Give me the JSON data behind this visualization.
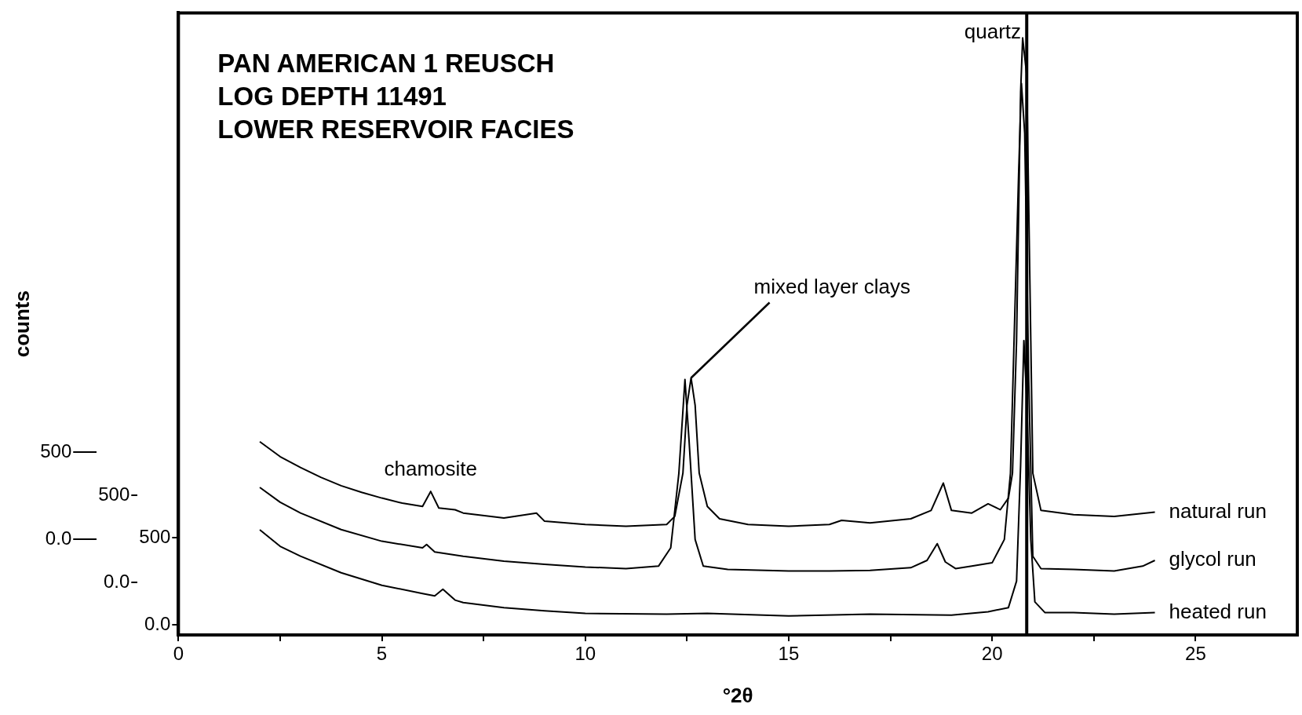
{
  "chart_data": {
    "type": "line",
    "title": "PAN AMERICAN 1 REUSCH\nLOG DEPTH 11491\nLOWER RESERVOIR FACIES",
    "xlabel": "°2θ",
    "ylabel": "counts",
    "xlim": [
      0,
      27.5
    ],
    "xticks": [
      0,
      {
        "value": 2.5,
        "label": null
      },
      5,
      {
        "value": 7.5,
        "label": null
      },
      10,
      {
        "value": 12.5,
        "label": null
      },
      15,
      {
        "value": 17.5,
        "label": null
      },
      20,
      {
        "value": 22.5,
        "label": null
      },
      25
    ],
    "ylim": [
      -548,
      3024
    ],
    "yticks": [
      {
        "value": 0,
        "label": "0.0"
      },
      500
    ],
    "y2lim": [
      -300,
      3271
    ],
    "y2ticks": [
      {
        "value": 0,
        "label": "0.0"
      },
      500
    ],
    "y3lim": [
      -57,
      3514
    ],
    "y3ticks": [
      {
        "value": 0,
        "label": "0.0"
      },
      500
    ],
    "annotations": [
      {
        "text": "chamosite",
        "x": 6.2,
        "y": 276
      },
      {
        "text": "mixed layer clays",
        "x": 12.6,
        "y": 928
      },
      {
        "text": "quartz",
        "x": 20.75,
        "y": 2880
      }
    ],
    "ref_lines": [
      {
        "axis": "x",
        "value": 20.85,
        "color": "#000000"
      }
    ],
    "series": [
      {
        "name": "natural run",
        "color": "#000000",
        "axis": "y",
        "x": [
          2,
          2.5,
          3,
          3.5,
          4,
          4.5,
          5,
          5.5,
          6,
          6.2,
          6.4,
          6.8,
          7,
          8,
          8.8,
          9,
          10,
          11,
          12,
          12.2,
          12.4,
          12.5,
          12.6,
          12.7,
          12.8,
          13,
          13.3,
          14,
          15,
          16,
          16.3,
          17,
          18,
          18.5,
          18.8,
          19,
          19.5,
          19.9,
          20.2,
          20.4,
          20.5,
          20.6,
          20.7,
          20.75,
          20.85,
          20.95,
          21,
          21.2,
          22,
          23,
          24
        ],
        "values": [
          562,
          476,
          414,
          357,
          309,
          271,
          238,
          209,
          190,
          276,
          181,
          171,
          152,
          124,
          152,
          105,
          86,
          76,
          86,
          133,
          381,
          771,
          928,
          771,
          381,
          190,
          119,
          86,
          76,
          86,
          110,
          95,
          119,
          167,
          324,
          167,
          152,
          205,
          171,
          238,
          381,
          1142,
          2570,
          2880,
          2666,
          1142,
          381,
          167,
          143,
          133,
          157
        ]
      },
      {
        "name": "glycol run",
        "color": "#000000",
        "axis": "y2",
        "x": [
          2,
          2.5,
          3,
          4,
          5,
          6,
          6.1,
          6.3,
          7,
          8,
          9,
          10,
          11,
          11.8,
          12.1,
          12.3,
          12.45,
          12.55,
          12.7,
          12.9,
          13.5,
          15,
          16,
          17,
          18,
          18.4,
          18.65,
          18.85,
          19.1,
          19.5,
          20,
          20.3,
          20.45,
          20.55,
          20.65,
          20.72,
          20.8,
          20.9,
          21,
          21.2,
          22,
          23,
          23.7,
          24
        ],
        "values": [
          547,
          462,
          400,
          305,
          238,
          200,
          219,
          176,
          152,
          124,
          105,
          90,
          81,
          95,
          200,
          628,
          1166,
          819,
          248,
          95,
          76,
          67,
          67,
          71,
          86,
          128,
          224,
          119,
          81,
          95,
          114,
          248,
          628,
          1485,
          2342,
          2866,
          2580,
          1152,
          152,
          81,
          76,
          67,
          95,
          128
        ]
      },
      {
        "name": "heated run",
        "color": "#000000",
        "axis": "y3",
        "x": [
          2,
          2.5,
          3,
          4,
          5,
          6,
          6.3,
          6.5,
          6.8,
          7,
          8,
          9,
          10,
          12,
          13,
          15,
          17,
          19,
          19.9,
          20.4,
          20.6,
          20.7,
          20.78,
          20.85,
          20.95,
          21.05,
          21.3,
          22,
          23,
          24
        ],
        "values": [
          547,
          452,
          395,
          300,
          228,
          181,
          167,
          205,
          143,
          129,
          100,
          81,
          67,
          62,
          67,
          52,
          62,
          57,
          76,
          100,
          252,
          919,
          1633,
          1300,
          490,
          133,
          71,
          71,
          62,
          71
        ]
      }
    ]
  }
}
